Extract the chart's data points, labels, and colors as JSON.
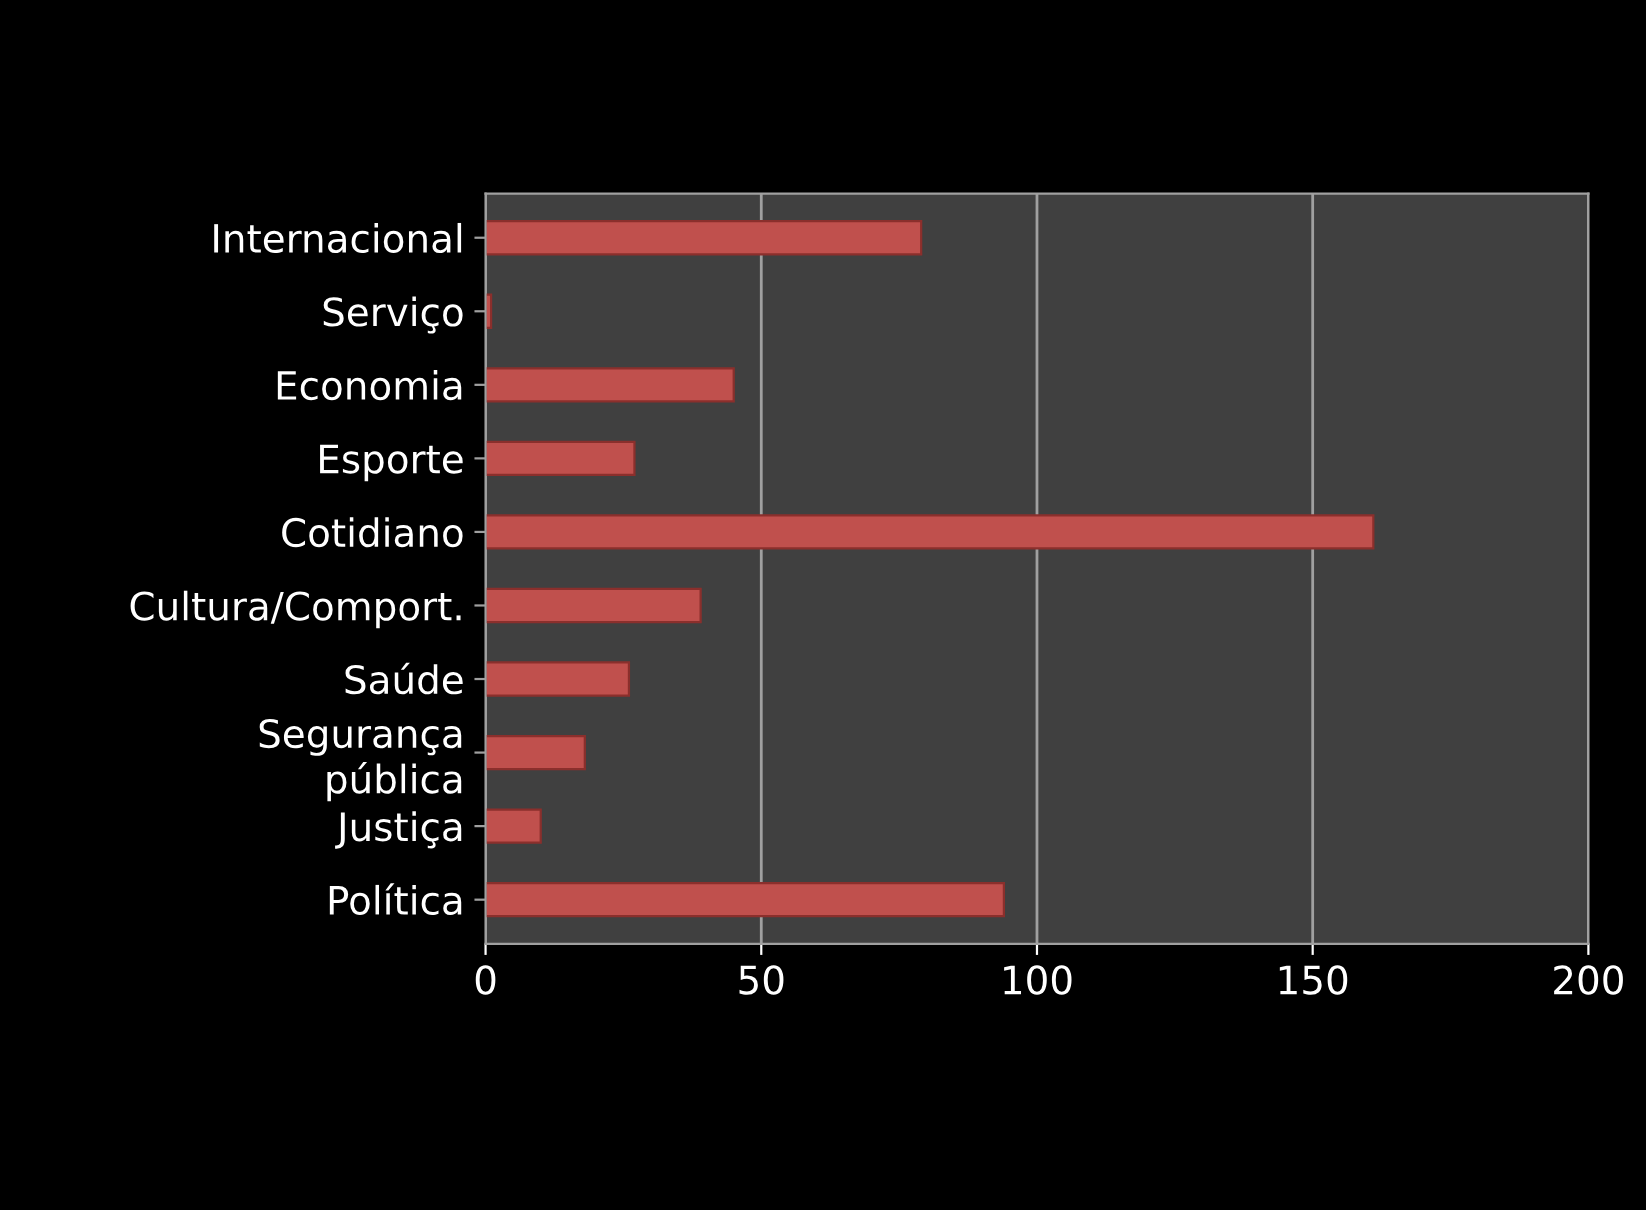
{
  "chart_data": {
    "type": "bar",
    "orientation": "horizontal",
    "categories": [
      "Internacional",
      "Serviço",
      "Economia",
      "Esporte",
      "Cotidiano",
      "Cultura/Comport.",
      "Saúde",
      "Segurança\npública",
      "Justiça",
      "Política"
    ],
    "values": [
      79,
      1,
      45,
      27,
      161,
      39,
      26,
      18,
      10,
      94
    ],
    "color": "#c0504d",
    "xlim": [
      0,
      200
    ],
    "xticks": [
      0,
      50,
      100,
      150,
      200
    ],
    "grid": "x"
  }
}
